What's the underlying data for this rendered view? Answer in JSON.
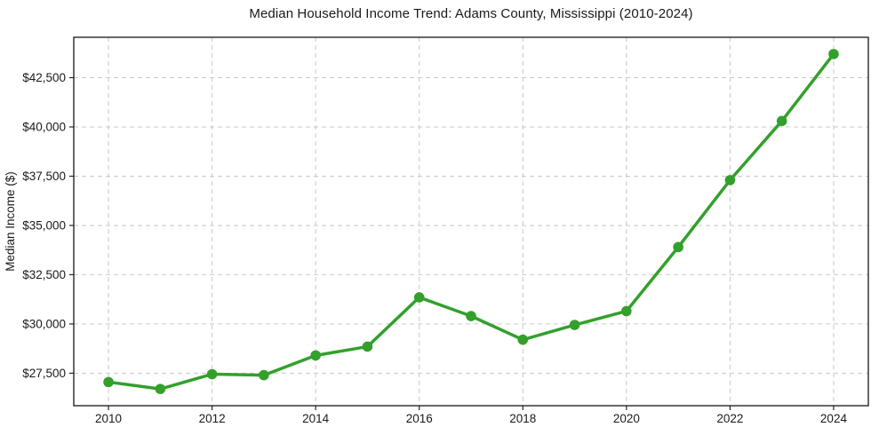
{
  "chart_data": {
    "type": "line",
    "title": "Median Household Income Trend: Adams County, Mississippi (2010-2024)",
    "xlabel": "",
    "ylabel": "Median Income ($)",
    "x": [
      2010,
      2011,
      2012,
      2013,
      2014,
      2015,
      2016,
      2017,
      2018,
      2019,
      2020,
      2021,
      2022,
      2023,
      2024
    ],
    "series": [
      {
        "name": "Median Household Income",
        "values": [
          27050,
          26700,
          27450,
          27400,
          28400,
          28850,
          31350,
          30400,
          29200,
          29950,
          30650,
          33900,
          37300,
          40300,
          43700
        ]
      }
    ],
    "xticks": [
      2010,
      2012,
      2014,
      2016,
      2018,
      2020,
      2022,
      2024
    ],
    "xtick_labels": [
      "2010",
      "2012",
      "2014",
      "2016",
      "2018",
      "2020",
      "2022",
      "2024"
    ],
    "yticks": [
      27500,
      30000,
      32500,
      35000,
      37500,
      40000,
      42500
    ],
    "ytick_labels": [
      "$27,500",
      "$30,000",
      "$32,500",
      "$35,000",
      "$37,500",
      "$40,000",
      "$42,500"
    ],
    "xlim": [
      2009.33,
      2024.67
    ],
    "ylim": [
      25850,
      44550
    ],
    "grid": true,
    "grid_style": "dashed",
    "legend": "none",
    "line_color": "#33a02c",
    "marker_color": "#33a02c",
    "grid_color": "#c9c9c9",
    "border_color": "#262626",
    "text_color": "#1a1a1a"
  }
}
